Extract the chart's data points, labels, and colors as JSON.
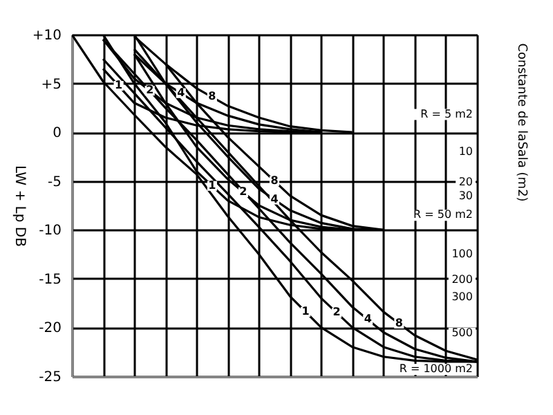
{
  "chart_data": {
    "type": "line",
    "ylabel": "LW + Lp DB",
    "y2label": "Constante de laSala (m2)",
    "categories": [
      null,
      null,
      null,
      null,
      null,
      null,
      null,
      null,
      null,
      null,
      null,
      null,
      null,
      null
    ],
    "ylim": [
      -25,
      10
    ],
    "yticks": [
      {
        "value": 10,
        "label": "+10"
      },
      {
        "value": 5,
        "label": "+5"
      },
      0,
      -5,
      -10,
      -15,
      -20,
      -25
    ],
    "grid": true,
    "tick_labels": "y",
    "series": [
      {
        "name": "1",
        "color": "#000000",
        "values": [
          null,
          6.5,
          3,
          1.5,
          0.7,
          0.3,
          0.1,
          0,
          0,
          null,
          null,
          null,
          null,
          null
        ]
      },
      {
        "name": "2",
        "color": "#000000",
        "values": [
          null,
          9.5,
          5.5,
          3,
          1.5,
          0.7,
          0.3,
          0.1,
          0,
          null,
          null,
          null,
          null,
          null
        ]
      },
      {
        "name": "4",
        "color": "#000000",
        "values": [
          null,
          null,
          8,
          5,
          3,
          1.7,
          0.8,
          0.3,
          0,
          null,
          null,
          null,
          null,
          null
        ]
      },
      {
        "name": "8",
        "color": "#000000",
        "values": [
          null,
          null,
          9.8,
          7,
          4.5,
          2.7,
          1.5,
          0.6,
          0.2,
          0,
          null,
          null,
          null,
          null
        ]
      },
      {
        "name": "1",
        "color": "#000000",
        "values": [
          null,
          10,
          5,
          1,
          -4,
          -7,
          -8.7,
          -9.5,
          -9.9,
          -10,
          null,
          null,
          null,
          null
        ]
      },
      {
        "name": "2",
        "color": "#000000",
        "values": [
          null,
          null,
          8,
          3,
          -1.5,
          -4.8,
          -7.5,
          -9,
          -9.7,
          -10,
          null,
          null,
          null,
          null
        ]
      },
      {
        "name": "4",
        "color": "#000000",
        "values": [
          null,
          null,
          10,
          5,
          1,
          -2.5,
          -5.8,
          -8,
          -9.3,
          -9.9,
          -10,
          null,
          null,
          null
        ]
      },
      {
        "name": "8",
        "color": "#000000",
        "values": [
          null,
          null,
          null,
          7,
          3,
          -0.5,
          -3.5,
          -6.5,
          -8.5,
          -9.6,
          -10,
          null,
          null,
          null
        ]
      },
      {
        "name": "1",
        "color": "#000000",
        "values": [
          10,
          5.2,
          1.8,
          -1.5,
          -4.3,
          -8.6,
          -12.5,
          -16.8,
          -20,
          -22,
          -23,
          -23.4,
          -23.5,
          -23.5
        ]
      },
      {
        "name": "2",
        "color": "#000000",
        "values": [
          null,
          7.5,
          4,
          0.5,
          -3,
          -6.3,
          -9.7,
          -13.2,
          -17,
          -20,
          -22,
          -23,
          -23.4,
          -23.5
        ]
      },
      {
        "name": "4",
        "color": "#000000",
        "values": [
          null,
          9.5,
          6,
          2.5,
          -0.8,
          -4.3,
          -7.8,
          -11.3,
          -14.5,
          -17.9,
          -20.5,
          -22.2,
          -23.1,
          -23.5
        ]
      },
      {
        "name": "8",
        "color": "#000000",
        "values": [
          null,
          null,
          8.5,
          5,
          1.5,
          -2,
          -5.5,
          -9,
          -12.3,
          -15.2,
          -18.4,
          -20.8,
          -22.4,
          -23.3
        ]
      }
    ],
    "annotations": [
      "R = 5 m2",
      "10",
      "20",
      "30",
      "R = 50 m2",
      "100",
      "200",
      "300",
      "500",
      "R = 1000 m2"
    ]
  }
}
